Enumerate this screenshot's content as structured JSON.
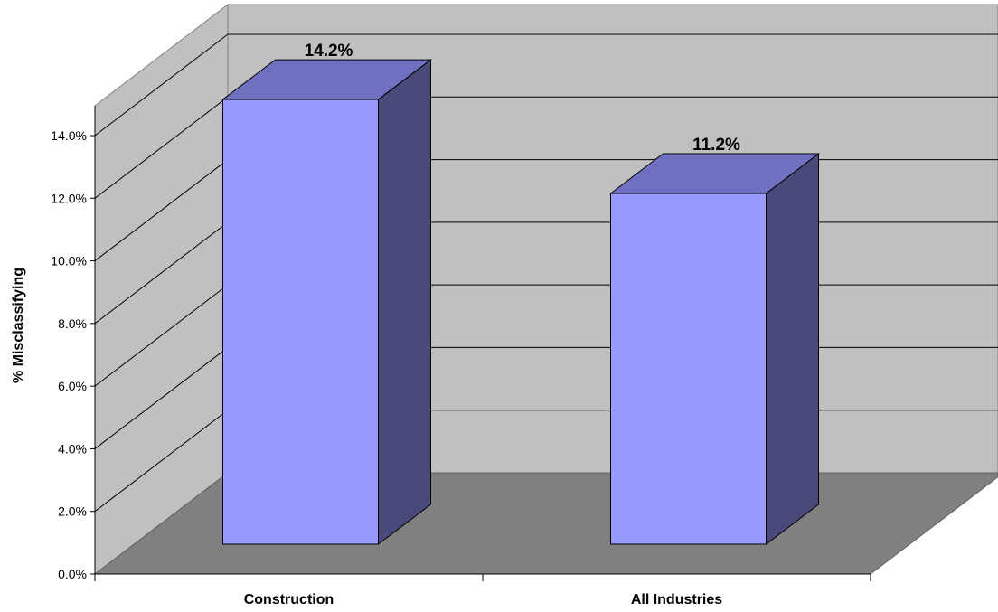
{
  "chart_data": {
    "type": "bar",
    "style": "3d-column",
    "categories": [
      "Construction",
      "All Industries"
    ],
    "values": [
      14.2,
      11.2
    ],
    "data_labels": [
      "14.2%",
      "11.2%"
    ],
    "ylabel": "% Misclassifying",
    "ylim": [
      0,
      14.0
    ],
    "yticks": [
      "0.0%",
      "2.0%",
      "4.0%",
      "6.0%",
      "8.0%",
      "10.0%",
      "12.0%",
      "14.0%"
    ],
    "grid": true,
    "legend": "none",
    "colors": {
      "bar_front": "#9999ff",
      "bar_top": "#7070c0",
      "bar_side": "#4a4a7a",
      "back_wall": "#c0c0c0",
      "side_wall": "#c0c0c0",
      "floor": "#808080"
    }
  }
}
